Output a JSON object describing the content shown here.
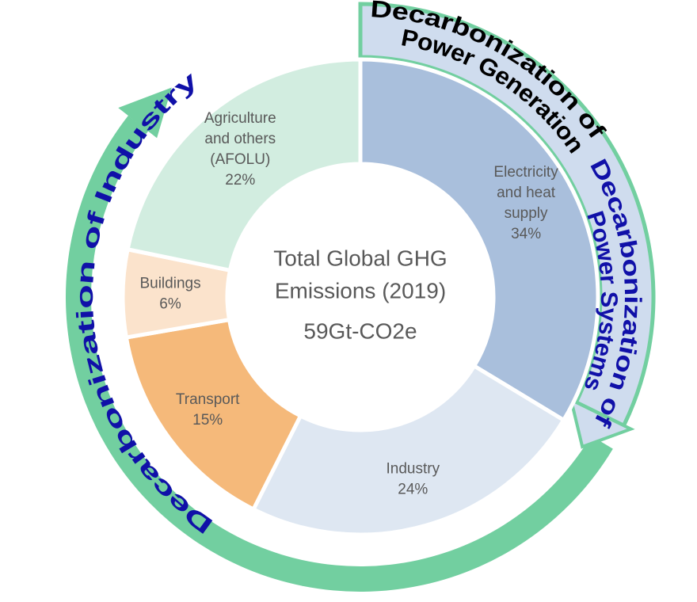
{
  "chart_data": {
    "type": "donut",
    "center_title": [
      "Total Global GHG",
      "Emissions (2019)"
    ],
    "center_value": "59Gt-CO2e",
    "categories": [
      [
        "Electricity",
        "and heat",
        "supply"
      ],
      [
        "Industry"
      ],
      [
        "Transport"
      ],
      [
        "Buildings"
      ],
      [
        "Agriculture",
        "and others",
        "(AFOLU)"
      ]
    ],
    "values": [
      34,
      24,
      15,
      6,
      22
    ],
    "value_labels": [
      "34%",
      "24%",
      "15%",
      "6%",
      "22%"
    ],
    "colors": [
      "#a9bfdc",
      "#dee7f2",
      "#f5b97a",
      "#fbe3cc",
      "#d2ede0"
    ],
    "annotations": [
      {
        "lines": [
          "Decarbonization of",
          "Power Generation"
        ],
        "color": "#000000"
      },
      {
        "lines": [
          "Decarbonization of",
          "Power Systems"
        ],
        "color": "#1010a8"
      },
      {
        "lines": [
          "Decarbonization of Industry"
        ],
        "color": "#1010a8"
      }
    ]
  }
}
